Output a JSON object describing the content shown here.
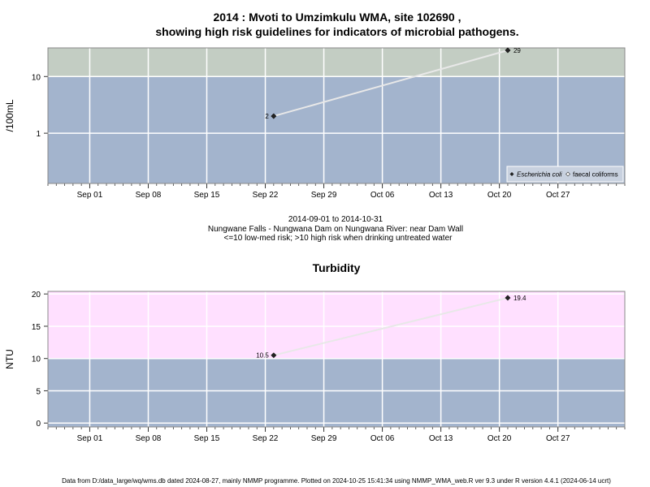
{
  "colors": {
    "low_risk_band": "#a3b4cd",
    "high_risk_micro_band": "#c3cdc3",
    "high_risk_turb_band": "#ffe0ff",
    "grid": "#ffffff",
    "line": "#e8e8e8",
    "point": "#222222",
    "frame": "#888888"
  },
  "text": {
    "title_line1": "2014 : Mvoti to Umzimkulu WMA, site 102690 ,",
    "title_line2": "showing high risk guidelines for indicators of microbial pathogens.",
    "date_range": "2014-09-01 to 2014-10-31",
    "site_desc": "Nungwane Falls - Nungwana Dam on Nungwana River: near Dam Wall",
    "risk_note": "<=10 low-med risk; >10 high risk when drinking untreated water",
    "turbidity_title": "Turbidity",
    "footer": "Data from D:/data_large/wq/wms.db dated 2024-08-27, mainly NMMP programme. Plotted on 2024-10-25 15:41:34 using NMMP_WMA_web.R ver 9.3 under R version 4.4.1 (2024-06-14 ucrt)"
  },
  "chart_data": [
    {
      "type": "line",
      "title": "2014 : Mvoti to Umzimkulu WMA, site 102690 , showing high risk guidelines for indicators of microbial pathogens.",
      "ylabel": "/100mL",
      "y_scale": "log10",
      "ylim": [
        0.13,
        32
      ],
      "x_range": [
        "2014-08-27",
        "2014-11-04"
      ],
      "x_ticks": [
        {
          "date": "2014-09-01",
          "label": "Sep 01"
        },
        {
          "date": "2014-09-08",
          "label": "Sep 08"
        },
        {
          "date": "2014-09-15",
          "label": "Sep 15"
        },
        {
          "date": "2014-09-22",
          "label": "Sep 22"
        },
        {
          "date": "2014-09-29",
          "label": "Sep 29"
        },
        {
          "date": "2014-10-06",
          "label": "Oct 06"
        },
        {
          "date": "2014-10-13",
          "label": "Oct 13"
        },
        {
          "date": "2014-10-20",
          "label": "Oct 20"
        },
        {
          "date": "2014-10-27",
          "label": "Oct 27"
        }
      ],
      "y_ticks": [
        {
          "value": 1,
          "label": "1"
        },
        {
          "value": 10,
          "label": "10"
        }
      ],
      "threshold": 10,
      "legend": {
        "placement": "bottom-right",
        "entries": [
          "Escherichia coli",
          "faecal coliforms"
        ]
      },
      "series": [
        {
          "name": "Escherichia coli",
          "points": [
            {
              "x": "2014-09-23",
              "y": 2,
              "label": "2"
            },
            {
              "x": "2014-10-21",
              "y": 29,
              "label": "29"
            }
          ]
        }
      ]
    },
    {
      "type": "line",
      "title": "Turbidity",
      "ylabel": "NTU",
      "y_scale": "linear",
      "ylim": [
        -0.6,
        20.4
      ],
      "x_range": [
        "2014-08-27",
        "2014-11-04"
      ],
      "x_ticks": [
        {
          "date": "2014-09-01",
          "label": "Sep 01"
        },
        {
          "date": "2014-09-08",
          "label": "Sep 08"
        },
        {
          "date": "2014-09-15",
          "label": "Sep 15"
        },
        {
          "date": "2014-09-22",
          "label": "Sep 22"
        },
        {
          "date": "2014-09-29",
          "label": "Sep 29"
        },
        {
          "date": "2014-10-06",
          "label": "Oct 06"
        },
        {
          "date": "2014-10-13",
          "label": "Oct 13"
        },
        {
          "date": "2014-10-20",
          "label": "Oct 20"
        },
        {
          "date": "2014-10-27",
          "label": "Oct 27"
        }
      ],
      "y_ticks": [
        {
          "value": 0,
          "label": "0"
        },
        {
          "value": 5,
          "label": "5"
        },
        {
          "value": 10,
          "label": "10"
        },
        {
          "value": 15,
          "label": "15"
        },
        {
          "value": 20,
          "label": "20"
        }
      ],
      "threshold": 10,
      "series": [
        {
          "points": [
            {
              "x": "2014-09-23",
              "y": 10.5,
              "label": "10.5"
            },
            {
              "x": "2014-10-21",
              "y": 19.4,
              "label": "19.4"
            }
          ]
        }
      ]
    }
  ]
}
